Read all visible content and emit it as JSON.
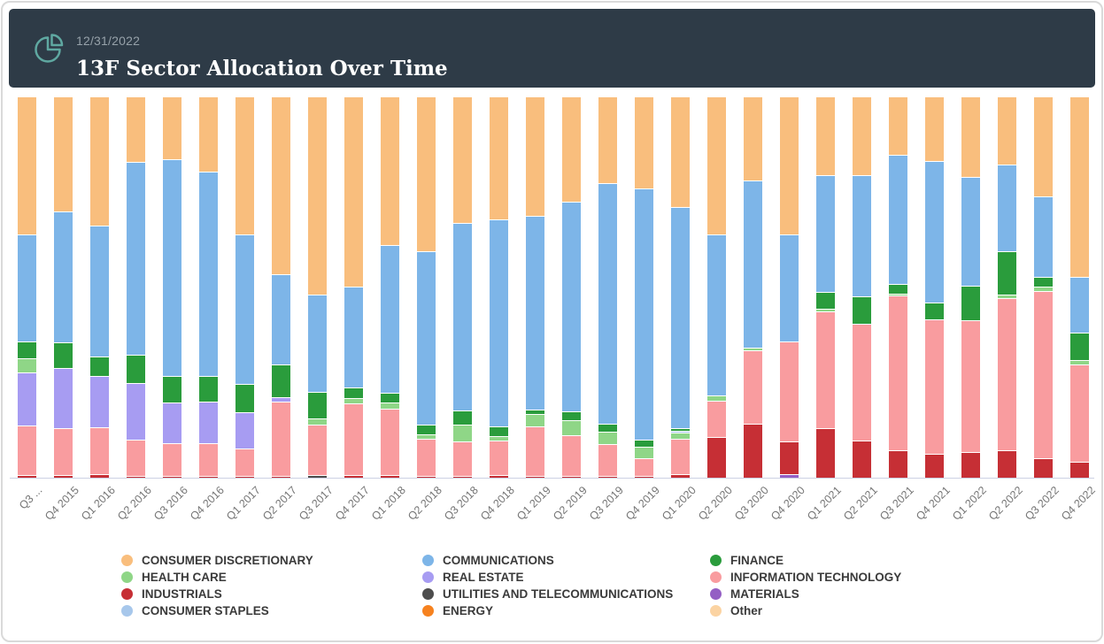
{
  "header": {
    "date": "12/31/2022",
    "title": "13F Sector Allocation Over Time",
    "icon": "pie-chart-icon",
    "background_color": "#2e3b47",
    "icon_color": "#5fa8a1"
  },
  "chart_data": {
    "type": "bar",
    "subtype": "100-percent-stacked-vertical",
    "title": "13F Sector Allocation Over Time",
    "xlabel": "",
    "ylabel": "",
    "ylim": [
      0,
      100
    ],
    "y_axis_visible": false,
    "grid": false,
    "legend_position": "bottom",
    "colors": {
      "CONSUMER DISCRETIONARY": "#F9BE7D",
      "HEALTH CARE": "#8FD687",
      "INDUSTRIALS": "#C62F35",
      "CONSUMER STAPLES": "#A7C7EB",
      "COMMUNICATIONS": "#7DB5E8",
      "REAL ESTATE": "#A79CF2",
      "UTILITIES AND TELECOMMUNICATIONS": "#4D4D4D",
      "ENERGY": "#F6821F",
      "FINANCE": "#2A9C3C",
      "INFORMATION TECHNOLOGY": "#F99C9F",
      "MATERIALS": "#945FC4",
      "Other": "#FBD3A2"
    },
    "legend_columns": [
      [
        "CONSUMER DISCRETIONARY",
        "HEALTH CARE",
        "INDUSTRIALS",
        "CONSUMER STAPLES"
      ],
      [
        "COMMUNICATIONS",
        "REAL ESTATE",
        "UTILITIES AND TELECOMMUNICATIONS",
        "ENERGY"
      ],
      [
        "FINANCE",
        "INFORMATION TECHNOLOGY",
        "MATERIALS",
        "Other"
      ]
    ],
    "note": "segments listed bottom-to-top, values are percent of portfolio",
    "bars": [
      {
        "label": "Q3 ...",
        "segments": [
          {
            "s": "INDUSTRIALS",
            "v": 0.5
          },
          {
            "s": "INFORMATION TECHNOLOGY",
            "v": 13.0
          },
          {
            "s": "REAL ESTATE",
            "v": 14.0
          },
          {
            "s": "HEALTH CARE",
            "v": 3.7
          },
          {
            "s": "FINANCE",
            "v": 4.5
          },
          {
            "s": "COMMUNICATIONS",
            "v": 28.0
          },
          {
            "s": "CONSUMER DISCRETIONARY",
            "v": 36.3
          }
        ]
      },
      {
        "label": "Q4 2015",
        "segments": [
          {
            "s": "INDUSTRIALS",
            "v": 0.5
          },
          {
            "s": "INFORMATION TECHNOLOGY",
            "v": 12.2
          },
          {
            "s": "REAL ESTATE",
            "v": 16.0
          },
          {
            "s": "FINANCE",
            "v": 6.7
          },
          {
            "s": "COMMUNICATIONS",
            "v": 34.3
          },
          {
            "s": "CONSUMER DISCRETIONARY",
            "v": 30.3
          }
        ]
      },
      {
        "label": "Q1 2016",
        "segments": [
          {
            "s": "INDUSTRIALS",
            "v": 0.6
          },
          {
            "s": "INFORMATION TECHNOLOGY",
            "v": 12.4
          },
          {
            "s": "REAL ESTATE",
            "v": 13.5
          },
          {
            "s": "FINANCE",
            "v": 5.1
          },
          {
            "s": "COMMUNICATIONS",
            "v": 34.4
          },
          {
            "s": "CONSUMER DISCRETIONARY",
            "v": 34.0
          }
        ]
      },
      {
        "label": "Q2 2016",
        "segments": [
          {
            "s": "INDUSTRIALS",
            "v": 0.3
          },
          {
            "s": "INFORMATION TECHNOLOGY",
            "v": 9.4
          },
          {
            "s": "REAL ESTATE",
            "v": 15.0
          },
          {
            "s": "FINANCE",
            "v": 7.3
          },
          {
            "s": "COMMUNICATIONS",
            "v": 50.7
          },
          {
            "s": "CONSUMER DISCRETIONARY",
            "v": 17.3
          }
        ]
      },
      {
        "label": "Q3 2016",
        "segments": [
          {
            "s": "INDUSTRIALS",
            "v": 0.3
          },
          {
            "s": "INFORMATION TECHNOLOGY",
            "v": 8.6
          },
          {
            "s": "REAL ESTATE",
            "v": 10.7
          },
          {
            "s": "FINANCE",
            "v": 6.9
          },
          {
            "s": "COMMUNICATIONS",
            "v": 56.9
          },
          {
            "s": "CONSUMER DISCRETIONARY",
            "v": 16.6
          }
        ]
      },
      {
        "label": "Q4 2016",
        "segments": [
          {
            "s": "INDUSTRIALS",
            "v": 0.3
          },
          {
            "s": "INFORMATION TECHNOLOGY",
            "v": 8.5
          },
          {
            "s": "REAL ESTATE",
            "v": 11.0
          },
          {
            "s": "FINANCE",
            "v": 6.8
          },
          {
            "s": "COMMUNICATIONS",
            "v": 53.7
          },
          {
            "s": "CONSUMER DISCRETIONARY",
            "v": 19.7
          }
        ]
      },
      {
        "label": "Q1 2017",
        "segments": [
          {
            "s": "INDUSTRIALS",
            "v": 0.3
          },
          {
            "s": "INFORMATION TECHNOLOGY",
            "v": 7.2
          },
          {
            "s": "REAL ESTATE",
            "v": 9.6
          },
          {
            "s": "FINANCE",
            "v": 7.3
          },
          {
            "s": "COMMUNICATIONS",
            "v": 39.4
          },
          {
            "s": "CONSUMER DISCRETIONARY",
            "v": 36.2
          }
        ]
      },
      {
        "label": "Q2 2017",
        "segments": [
          {
            "s": "INDUSTRIALS",
            "v": 0.3
          },
          {
            "s": "INFORMATION TECHNOLOGY",
            "v": 19.4
          },
          {
            "s": "REAL ESTATE",
            "v": 1.3
          },
          {
            "s": "FINANCE",
            "v": 8.6
          },
          {
            "s": "COMMUNICATIONS",
            "v": 23.7
          },
          {
            "s": "CONSUMER DISCRETIONARY",
            "v": 46.7
          }
        ]
      },
      {
        "label": "Q3 2017",
        "segments": [
          {
            "s": "UTILITIES AND TELECOMMUNICATIONS",
            "v": 0.5
          },
          {
            "s": "INFORMATION TECHNOLOGY",
            "v": 13.2
          },
          {
            "s": "HEALTH CARE",
            "v": 1.6
          },
          {
            "s": "FINANCE",
            "v": 7.1
          },
          {
            "s": "COMMUNICATIONS",
            "v": 25.6
          },
          {
            "s": "CONSUMER DISCRETIONARY",
            "v": 52.0
          }
        ]
      },
      {
        "label": "Q4 2017",
        "segments": [
          {
            "s": "INDUSTRIALS",
            "v": 0.4
          },
          {
            "s": "INFORMATION TECHNOLOGY",
            "v": 19.0
          },
          {
            "s": "HEALTH CARE",
            "v": 1.4
          },
          {
            "s": "FINANCE",
            "v": 2.7
          },
          {
            "s": "COMMUNICATIONS",
            "v": 26.4
          },
          {
            "s": "CONSUMER DISCRETIONARY",
            "v": 50.1
          }
        ]
      },
      {
        "label": "Q1 2018",
        "segments": [
          {
            "s": "INDUSTRIALS",
            "v": 0.5
          },
          {
            "s": "INFORMATION TECHNOLOGY",
            "v": 17.5
          },
          {
            "s": "HEALTH CARE",
            "v": 1.6
          },
          {
            "s": "FINANCE",
            "v": 2.6
          },
          {
            "s": "COMMUNICATIONS",
            "v": 38.7
          },
          {
            "s": "CONSUMER DISCRETIONARY",
            "v": 39.1
          }
        ]
      },
      {
        "label": "Q2 2018",
        "segments": [
          {
            "s": "INDUSTRIALS",
            "v": 0.2
          },
          {
            "s": "INFORMATION TECHNOLOGY",
            "v": 9.8
          },
          {
            "s": "HEALTH CARE",
            "v": 1.2
          },
          {
            "s": "FINANCE",
            "v": 2.5
          },
          {
            "s": "COMMUNICATIONS",
            "v": 45.6
          },
          {
            "s": "CONSUMER DISCRETIONARY",
            "v": 40.7
          }
        ]
      },
      {
        "label": "Q3 2018",
        "segments": [
          {
            "s": "INDUSTRIALS",
            "v": 0.2
          },
          {
            "s": "INFORMATION TECHNOLOGY",
            "v": 9.0
          },
          {
            "s": "HEALTH CARE",
            "v": 4.5
          },
          {
            "s": "FINANCE",
            "v": 3.8
          },
          {
            "s": "COMMUNICATIONS",
            "v": 49.2
          },
          {
            "s": "CONSUMER DISCRETIONARY",
            "v": 33.3
          }
        ]
      },
      {
        "label": "Q4 2018",
        "segments": [
          {
            "s": "INDUSTRIALS",
            "v": 0.5
          },
          {
            "s": "INFORMATION TECHNOLOGY",
            "v": 9.0
          },
          {
            "s": "HEALTH CARE",
            "v": 1.2
          },
          {
            "s": "FINANCE",
            "v": 2.6
          },
          {
            "s": "COMMUNICATIONS",
            "v": 54.3
          },
          {
            "s": "CONSUMER DISCRETIONARY",
            "v": 32.4
          }
        ]
      },
      {
        "label": "Q1 2019",
        "segments": [
          {
            "s": "INDUSTRIALS",
            "v": 0.2
          },
          {
            "s": "INFORMATION TECHNOLOGY",
            "v": 13.1
          },
          {
            "s": "HEALTH CARE",
            "v": 3.1
          },
          {
            "s": "FINANCE",
            "v": 1.2
          },
          {
            "s": "COMMUNICATIONS",
            "v": 51.1
          },
          {
            "s": "CONSUMER DISCRETIONARY",
            "v": 31.3
          }
        ]
      },
      {
        "label": "Q2 2019",
        "segments": [
          {
            "s": "INDUSTRIALS",
            "v": 0.2
          },
          {
            "s": "INFORMATION TECHNOLOGY",
            "v": 10.8
          },
          {
            "s": "HEALTH CARE",
            "v": 3.9
          },
          {
            "s": "FINANCE",
            "v": 2.4
          },
          {
            "s": "COMMUNICATIONS",
            "v": 55.1
          },
          {
            "s": "CONSUMER DISCRETIONARY",
            "v": 27.6
          }
        ]
      },
      {
        "label": "Q3 2019",
        "segments": [
          {
            "s": "INDUSTRIALS",
            "v": 0.2
          },
          {
            "s": "INFORMATION TECHNOLOGY",
            "v": 8.5
          },
          {
            "s": "HEALTH CARE",
            "v": 3.1
          },
          {
            "s": "FINANCE",
            "v": 2.1
          },
          {
            "s": "COMMUNICATIONS",
            "v": 63.4
          },
          {
            "s": "CONSUMER DISCRETIONARY",
            "v": 22.7
          }
        ]
      },
      {
        "label": "Q4 2019",
        "segments": [
          {
            "s": "INDUSTRIALS",
            "v": 0.2
          },
          {
            "s": "INFORMATION TECHNOLOGY",
            "v": 4.7
          },
          {
            "s": "HEALTH CARE",
            "v": 2.9
          },
          {
            "s": "FINANCE",
            "v": 2.0
          },
          {
            "s": "COMMUNICATIONS",
            "v": 66.1
          },
          {
            "s": "CONSUMER DISCRETIONARY",
            "v": 24.1
          }
        ]
      },
      {
        "label": "Q1 2020",
        "segments": [
          {
            "s": "INDUSTRIALS",
            "v": 0.7
          },
          {
            "s": "INFORMATION TECHNOLOGY",
            "v": 9.4
          },
          {
            "s": "HEALTH CARE",
            "v": 1.6
          },
          {
            "s": "CONSUMER STAPLES",
            "v": 0.5
          },
          {
            "s": "FINANCE",
            "v": 0.6
          },
          {
            "s": "COMMUNICATIONS",
            "v": 58.1
          },
          {
            "s": "CONSUMER DISCRETIONARY",
            "v": 29.1
          }
        ]
      },
      {
        "label": "Q2 2020",
        "segments": [
          {
            "s": "INDUSTRIALS",
            "v": 10.4
          },
          {
            "s": "INFORMATION TECHNOLOGY",
            "v": 9.6
          },
          {
            "s": "HEALTH CARE",
            "v": 1.3
          },
          {
            "s": "COMMUNICATIONS",
            "v": 42.4
          },
          {
            "s": "CONSUMER DISCRETIONARY",
            "v": 36.3
          }
        ]
      },
      {
        "label": "Q3 2020",
        "segments": [
          {
            "s": "INDUSTRIALS",
            "v": 13.9
          },
          {
            "s": "INFORMATION TECHNOLOGY",
            "v": 19.4
          },
          {
            "s": "HEALTH CARE",
            "v": 0.6
          },
          {
            "s": "COMMUNICATIONS",
            "v": 43.9
          },
          {
            "s": "CONSUMER DISCRETIONARY",
            "v": 22.2
          }
        ]
      },
      {
        "label": "Q4 2020",
        "segments": [
          {
            "s": "MATERIALS",
            "v": 0.6
          },
          {
            "s": "INDUSTRIALS",
            "v": 8.8
          },
          {
            "s": "INFORMATION TECHNOLOGY",
            "v": 26.3
          },
          {
            "s": "COMMUNICATIONS",
            "v": 28.0
          },
          {
            "s": "CONSUMER DISCRETIONARY",
            "v": 36.3
          }
        ]
      },
      {
        "label": "Q1 2021",
        "segments": [
          {
            "s": "INDUSTRIALS",
            "v": 12.7
          },
          {
            "s": "INFORMATION TECHNOLOGY",
            "v": 30.8
          },
          {
            "s": "HEALTH CARE",
            "v": 0.8
          },
          {
            "s": "FINANCE",
            "v": 4.2
          },
          {
            "s": "COMMUNICATIONS",
            "v": 30.7
          },
          {
            "s": "CONSUMER DISCRETIONARY",
            "v": 20.8
          }
        ]
      },
      {
        "label": "Q2 2021",
        "segments": [
          {
            "s": "INDUSTRIALS",
            "v": 9.6
          },
          {
            "s": "INFORMATION TECHNOLOGY",
            "v": 30.7
          },
          {
            "s": "FINANCE",
            "v": 7.1
          },
          {
            "s": "COMMUNICATIONS",
            "v": 31.8
          },
          {
            "s": "CONSUMER DISCRETIONARY",
            "v": 20.8
          }
        ]
      },
      {
        "label": "Q3 2021",
        "segments": [
          {
            "s": "INDUSTRIALS",
            "v": 7.0
          },
          {
            "s": "INFORMATION TECHNOLOGY",
            "v": 40.7
          },
          {
            "s": "HEALTH CARE",
            "v": 0.5
          },
          {
            "s": "FINANCE",
            "v": 2.4
          },
          {
            "s": "COMMUNICATIONS",
            "v": 34.1
          },
          {
            "s": "CONSUMER DISCRETIONARY",
            "v": 15.3
          }
        ]
      },
      {
        "label": "Q4 2021",
        "segments": [
          {
            "s": "INDUSTRIALS",
            "v": 6.1
          },
          {
            "s": "INFORMATION TECHNOLOGY",
            "v": 35.3
          },
          {
            "s": "FINANCE",
            "v": 4.4
          },
          {
            "s": "COMMUNICATIONS",
            "v": 37.2
          },
          {
            "s": "CONSUMER DISCRETIONARY",
            "v": 17.0
          }
        ]
      },
      {
        "label": "Q1 2022",
        "segments": [
          {
            "s": "INDUSTRIALS",
            "v": 6.6
          },
          {
            "s": "INFORMATION TECHNOLOGY",
            "v": 34.6
          },
          {
            "s": "FINANCE",
            "v": 9.0
          },
          {
            "s": "COMMUNICATIONS",
            "v": 28.7
          },
          {
            "s": "CONSUMER DISCRETIONARY",
            "v": 21.1
          }
        ]
      },
      {
        "label": "Q2 2022",
        "segments": [
          {
            "s": "INDUSTRIALS",
            "v": 7.0
          },
          {
            "s": "INFORMATION TECHNOLOGY",
            "v": 40.0
          },
          {
            "s": "HEALTH CARE",
            "v": 0.9
          },
          {
            "s": "FINANCE",
            "v": 11.3
          },
          {
            "s": "COMMUNICATIONS",
            "v": 22.8
          },
          {
            "s": "CONSUMER DISCRETIONARY",
            "v": 18.0
          }
        ]
      },
      {
        "label": "Q3 2022",
        "segments": [
          {
            "s": "INDUSTRIALS",
            "v": 4.9
          },
          {
            "s": "INFORMATION TECHNOLOGY",
            "v": 43.5
          },
          {
            "s": "HEALTH CARE",
            "v": 1.3
          },
          {
            "s": "FINANCE",
            "v": 2.6
          },
          {
            "s": "COMMUNICATIONS",
            "v": 20.9
          },
          {
            "s": "CONSUMER DISCRETIONARY",
            "v": 26.1
          }
        ]
      },
      {
        "label": "Q4 2022",
        "segments": [
          {
            "s": "INDUSTRIALS",
            "v": 4.0
          },
          {
            "s": "INFORMATION TECHNOLOGY",
            "v": 25.4
          },
          {
            "s": "HEALTH CARE",
            "v": 1.2
          },
          {
            "s": "FINANCE",
            "v": 7.1
          },
          {
            "s": "COMMUNICATIONS",
            "v": 14.6
          },
          {
            "s": "CONSUMER DISCRETIONARY",
            "v": 47.3
          }
        ]
      }
    ]
  }
}
